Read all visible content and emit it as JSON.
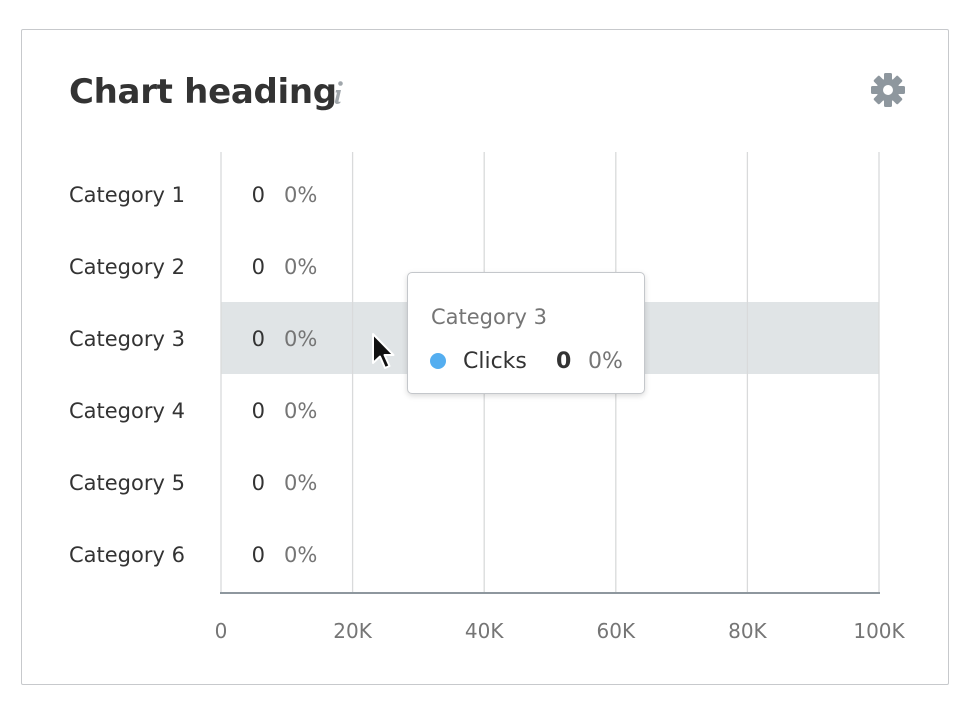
{
  "header": {
    "title": "Chart heading",
    "info_icon": "info-icon",
    "settings_icon": "gear-icon"
  },
  "colors": {
    "series": "#54aef0",
    "highlight": "#e0e4e6",
    "grid": "#d9dadb",
    "axis": "#8e979e",
    "label": "#333333",
    "muted": "#757575"
  },
  "chart_data": {
    "type": "bar",
    "orientation": "horizontal",
    "title": "Chart heading",
    "categories": [
      "Category 1",
      "Category 2",
      "Category 3",
      "Category 4",
      "Category 5",
      "Category 6"
    ],
    "series": [
      {
        "name": "Clicks",
        "values": [
          0,
          0,
          0,
          0,
          0,
          0
        ],
        "percents": [
          "0%",
          "0%",
          "0%",
          "0%",
          "0%",
          "0%"
        ]
      }
    ],
    "value_labels": [
      "0",
      "0",
      "0",
      "0",
      "0",
      "0"
    ],
    "xlim": [
      0,
      100000
    ],
    "x_ticks": [
      0,
      20000,
      40000,
      60000,
      80000,
      100000
    ],
    "x_tick_labels": [
      "0",
      "20K",
      "40K",
      "60K",
      "80K",
      "100K"
    ],
    "grid": true,
    "highlighted_category": "Category 3"
  },
  "tooltip": {
    "title": "Category 3",
    "series_name": "Clicks",
    "value": "0",
    "percent": "0%"
  }
}
